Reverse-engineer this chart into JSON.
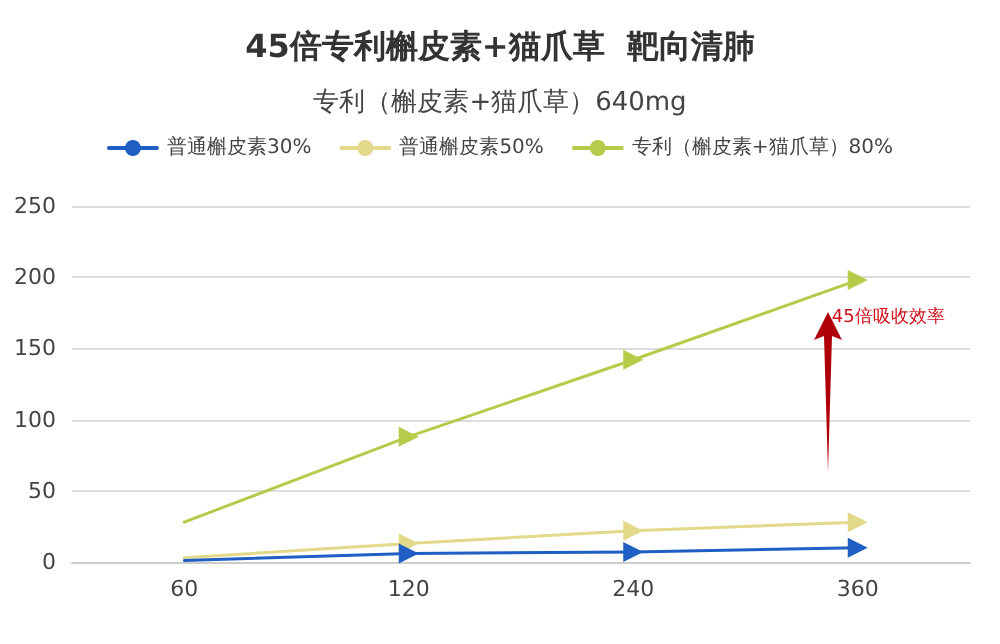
{
  "chart_data": {
    "type": "line",
    "title": "45倍专利槲皮素+猫爪草  靶向清肺",
    "subtitle": "专利（槲皮素+猫爪草）640mg",
    "categories": [
      "60",
      "120",
      "240",
      "360"
    ],
    "series": [
      {
        "name": "普通槲皮素30%",
        "color": "#1f5fc4",
        "values": [
          1,
          6,
          7,
          10
        ]
      },
      {
        "name": "普通槲皮素50%",
        "color": "#e3d98a",
        "values": [
          3,
          13,
          22,
          28
        ]
      },
      {
        "name": "专利（槲皮素+猫爪草）80%",
        "color": "#b5cc4a",
        "values": [
          28,
          88,
          142,
          198
        ]
      }
    ],
    "ylim": [
      0,
      250
    ],
    "yticks": [
      0,
      50,
      100,
      150,
      200,
      250
    ],
    "grid": "y",
    "legend": "top",
    "marker": "triangle",
    "line_style": "solid",
    "annotations": [
      "45倍吸收效率"
    ]
  }
}
